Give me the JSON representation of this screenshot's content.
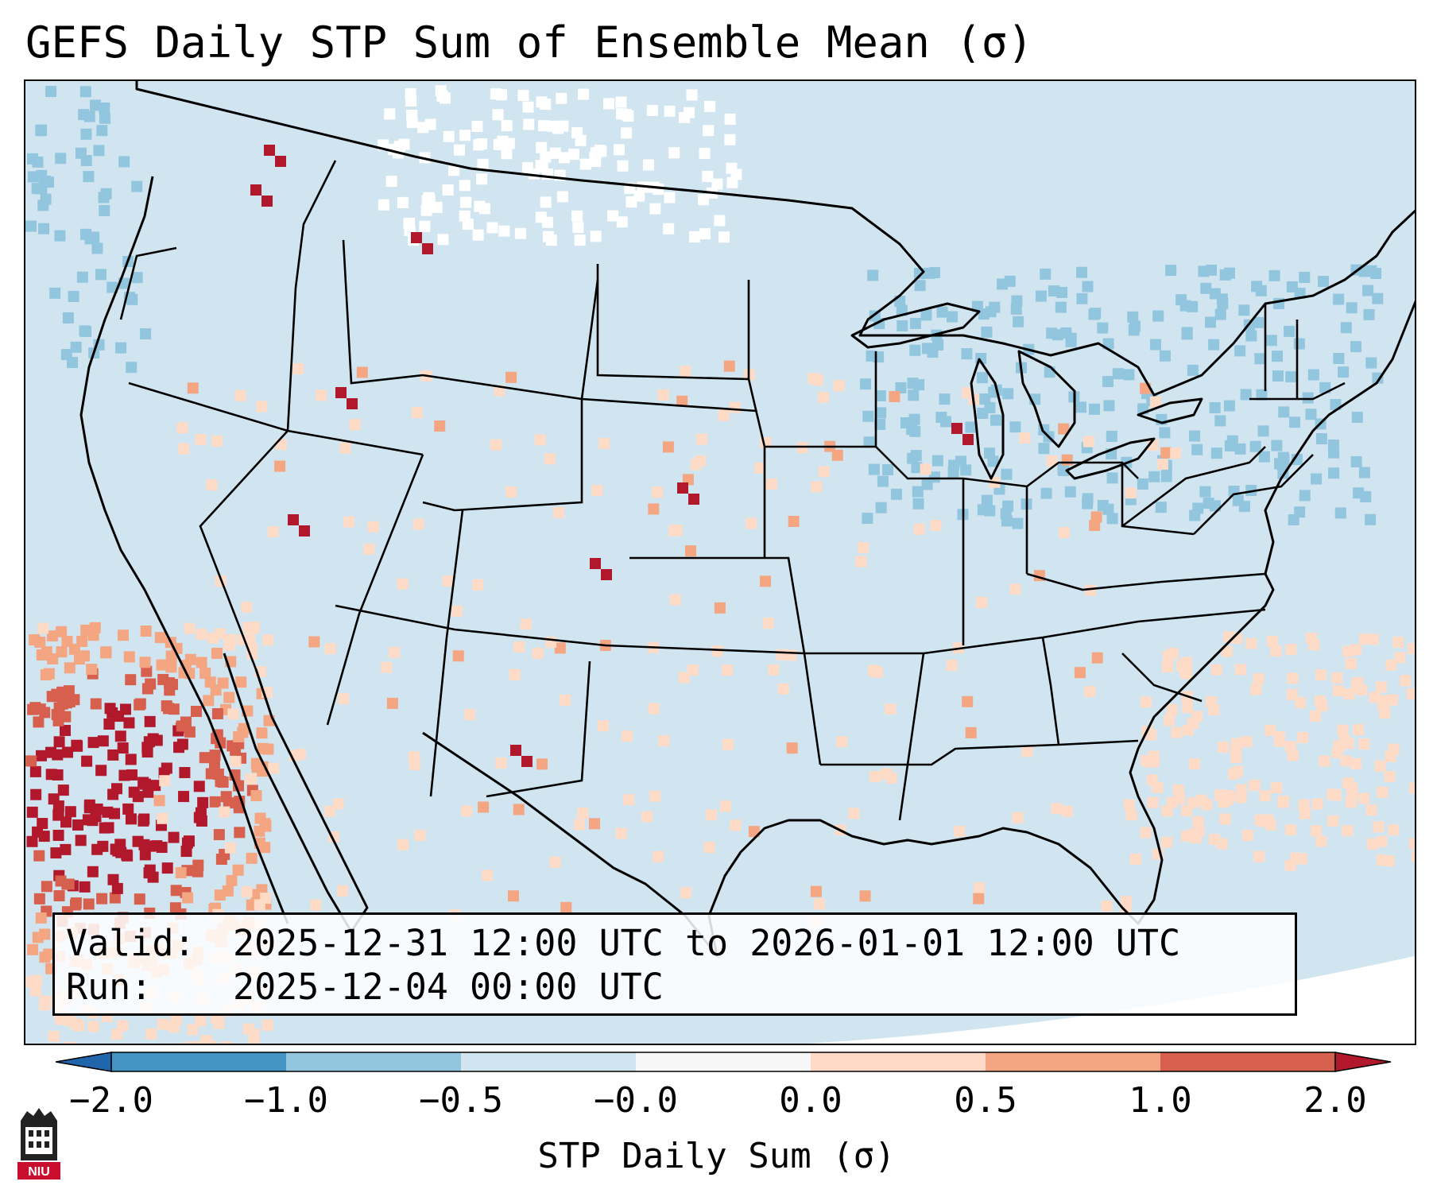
{
  "title": "GEFS Daily STP Sum of Ensemble Mean (σ)",
  "map": {
    "background_color": "#d1e5f0",
    "outside_color": "#ffffff",
    "border_color": "#000000",
    "region": "CONUS"
  },
  "info": {
    "valid_key": "Valid:",
    "valid_value": "2025-12-31 12:00 UTC to 2026-01-01 12:00 UTC",
    "run_key": "Run:",
    "run_value": "2025-12-04 00:00 UTC"
  },
  "colorbar": {
    "label": "STP Daily Sum (σ)",
    "ticks": [
      "−2.0",
      "−1.0",
      "−0.5",
      "−0.0",
      "0.0",
      "0.5",
      "1.0",
      "2.0"
    ],
    "colors": [
      "#4393c3",
      "#92c5de",
      "#d1e5f0",
      "#f7f7f7",
      "#fddbc7",
      "#f4a582",
      "#d6604d"
    ],
    "under_color": "#2166ac",
    "over_color": "#b2182b"
  },
  "logo": {
    "text": "NIU",
    "icon": "niu-tower-icon"
  }
}
